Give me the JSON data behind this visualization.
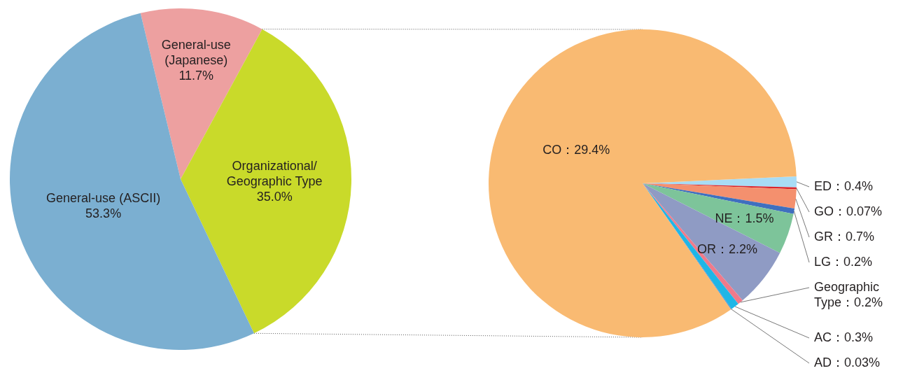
{
  "chart_data": [
    {
      "type": "pie",
      "categories": [
        "General-use\n(Japanese)",
        "Organizational/\nGeographic Type",
        "General-use (ASCII)"
      ],
      "values": [
        11.7,
        35.0,
        53.3
      ],
      "colors": [
        "#eda0a0",
        "#c9da2a",
        "#7bafd1"
      ],
      "value_labels": [
        "11.7%",
        "35.0%",
        "53.3%"
      ]
    },
    {
      "type": "pie",
      "categories": [
        "ED",
        "GO",
        "GR",
        "LG",
        "NE",
        "OR",
        "Geographic\nType",
        "AC",
        "AD",
        "CO"
      ],
      "values": [
        0.4,
        0.07,
        0.7,
        0.2,
        1.5,
        2.2,
        0.2,
        0.3,
        0.03,
        29.4
      ],
      "colors": [
        "#a8dcf5",
        "#d9262e",
        "#f4906e",
        "#3f6fbf",
        "#7dc49a",
        "#8f9bc4",
        "#f07a8a",
        "#1fb6e6",
        "#4a8fd0",
        "#f9ba72"
      ],
      "value_labels": [
        "0.4%",
        "0.07%",
        "0.7%",
        "0.2%",
        "1.5%",
        "2.2%",
        "0.2%",
        "0.3%",
        "0.03%",
        "29.4%"
      ]
    }
  ]
}
